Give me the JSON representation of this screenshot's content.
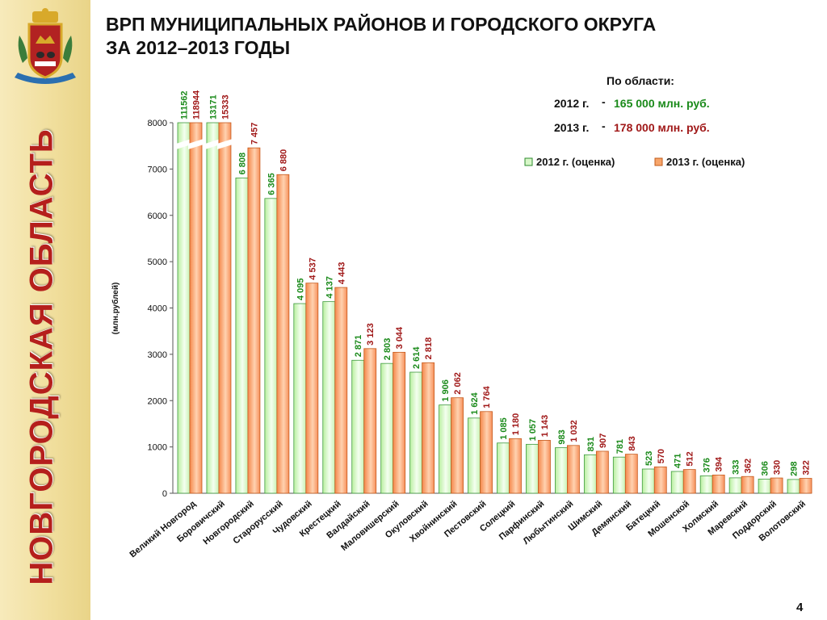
{
  "sidebar": {
    "vertical_title": "НОВГОРОДСКАЯ ОБЛАСТЬ",
    "crest_icon": "novgorod-coat-of-arms-icon"
  },
  "title": {
    "line1": "ВРП МУНИЦИПАЛЬНЫХ РАЙОНОВ И ГОРОДСКОГО ОКРУГА",
    "line2": "ЗА 2012–2013 ГОДЫ"
  },
  "summary": {
    "heading": "По области:",
    "rows": [
      {
        "year": "2012 г.",
        "dash": "-",
        "value": "165 000 млн. руб.",
        "color": "#1a8a1a"
      },
      {
        "year": "2013 г.",
        "dash": "-",
        "value": "178 000 млн. руб.",
        "color": "#a01818"
      }
    ]
  },
  "page_number": "4",
  "chart_data": {
    "type": "bar",
    "ylabel": "(млн.рублей)",
    "ylim": [
      0,
      8000
    ],
    "yticks": [
      0,
      1000,
      2000,
      3000,
      4000,
      5000,
      6000,
      7000,
      8000
    ],
    "axis_break": true,
    "categories": [
      "Великий Новгород",
      "Боровичский",
      "Новгородский",
      "Старорусский",
      "Чудовский",
      "Крестецкий",
      "Валдайский",
      "Маловишерский",
      "Окуловский",
      "Хвойнинский",
      "Пестовский",
      "Солецкий",
      "Парфинский",
      "Любытинский",
      "Шимский",
      "Демянский",
      "Батецкий",
      "Мошенской",
      "Холмский",
      "Маревский",
      "Поддорский",
      "Волотовский"
    ],
    "series": [
      {
        "name": "2012 г. (оценка)",
        "color": "#1a8a1a",
        "values": [
          111562,
          13171,
          6808,
          6365,
          4095,
          4137,
          2871,
          2803,
          2614,
          1906,
          1624,
          1085,
          1057,
          983,
          831,
          781,
          523,
          471,
          376,
          333,
          306,
          298
        ],
        "labels": [
          "111562",
          "13171",
          "6 808",
          "6 365",
          "4 095",
          "4 137",
          "2 871",
          "2 803",
          "2 614",
          "1 906",
          "1 624",
          "1 085",
          "1 057",
          "983",
          "831",
          "781",
          "523",
          "471",
          "376",
          "333",
          "306",
          "298"
        ]
      },
      {
        "name": "2013 г. (оценка)",
        "color": "#a01818",
        "values": [
          118944,
          15333,
          7457,
          6880,
          4537,
          4443,
          3123,
          3044,
          2818,
          2062,
          1764,
          1180,
          1143,
          1032,
          907,
          843,
          570,
          512,
          394,
          362,
          330,
          322
        ],
        "labels": [
          "118944",
          "15333",
          "7 457",
          "6 880",
          "4 537",
          "4 443",
          "3 123",
          "3 044",
          "2 818",
          "2 062",
          "1 764",
          "1 180",
          "1 143",
          "1 032",
          "907",
          "843",
          "570",
          "512",
          "394",
          "362",
          "330",
          "322"
        ]
      }
    ],
    "grid": false,
    "legend": "top-right"
  }
}
